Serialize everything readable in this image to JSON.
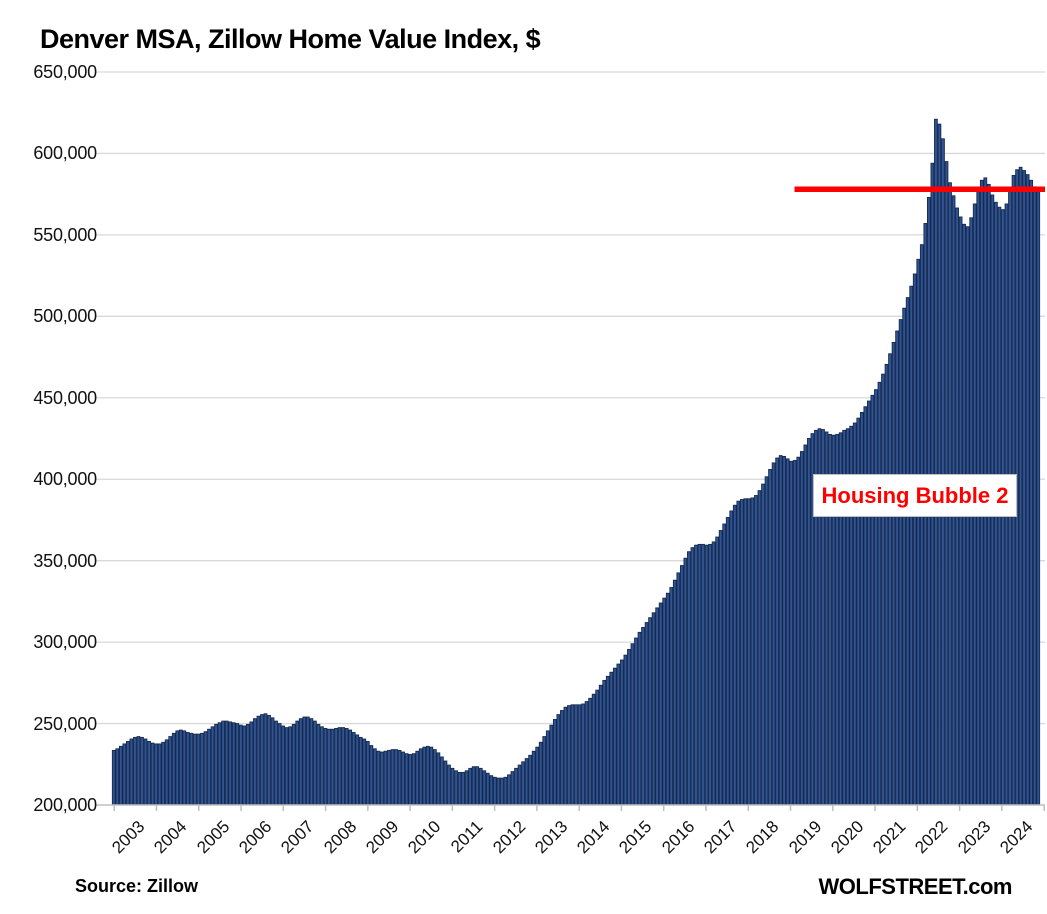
{
  "title": "Denver MSA, Zillow Home Value Index, $",
  "source_note": "Source: Zillow",
  "branding": "WOLFSTREET.com",
  "annotation": {
    "label": "Housing Bubble 2"
  },
  "colors": {
    "bar_fill": "#2F5496",
    "bar_stroke": "#17294A",
    "gridline": "#D9D9D9",
    "axis": "#BFBFBF",
    "reference_line": "#FF0000",
    "annotation_text": "#FF0000",
    "text": "#000000"
  },
  "chart_data": {
    "type": "bar",
    "title": "Denver MSA, Zillow Home Value Index, $",
    "xlabel": "",
    "ylabel": "",
    "ylim": [
      200000,
      650000
    ],
    "ytick_step": 50000,
    "ytick_labels": [
      "200,000",
      "250,000",
      "300,000",
      "350,000",
      "400,000",
      "450,000",
      "500,000",
      "550,000",
      "600,000",
      "650,000"
    ],
    "grid": true,
    "legend": false,
    "x_years": [
      2003,
      2004,
      2005,
      2006,
      2007,
      2008,
      2009,
      2010,
      2011,
      2012,
      2013,
      2014,
      2015,
      2016,
      2017,
      2018,
      2019,
      2020,
      2021,
      2022,
      2023,
      2024
    ],
    "series_name": "Zillow Home Value Index ($, monthly)",
    "start_month": "2003-01",
    "end_month": "2024-11",
    "monthly_values": [
      233500,
      234500,
      236000,
      237500,
      239000,
      240500,
      241500,
      242000,
      241500,
      240500,
      239000,
      238000,
      237500,
      237500,
      238500,
      240000,
      242000,
      244000,
      245500,
      246000,
      245500,
      244500,
      244000,
      243500,
      243500,
      244000,
      245000,
      246500,
      248000,
      249500,
      250500,
      251500,
      251500,
      251000,
      250500,
      250000,
      249000,
      248500,
      249500,
      251000,
      253000,
      254500,
      255500,
      256000,
      255000,
      253500,
      251500,
      250000,
      248500,
      247500,
      248000,
      249500,
      251500,
      253000,
      254000,
      254000,
      253000,
      251500,
      249500,
      248000,
      247000,
      246500,
      246500,
      247000,
      247500,
      247500,
      247000,
      246000,
      244500,
      243000,
      241500,
      240500,
      239000,
      236500,
      234500,
      233000,
      232500,
      233000,
      233500,
      234000,
      234000,
      233500,
      232500,
      231500,
      231000,
      231500,
      233000,
      234500,
      235500,
      236000,
      235500,
      234000,
      232000,
      229500,
      227000,
      224500,
      222500,
      221000,
      220000,
      220000,
      221000,
      222500,
      223500,
      223500,
      222500,
      221000,
      219500,
      218000,
      217000,
      216500,
      216500,
      217000,
      218500,
      220500,
      222500,
      224500,
      226500,
      228500,
      230500,
      233000,
      235500,
      238500,
      242000,
      245500,
      249000,
      252500,
      255500,
      258000,
      260000,
      261000,
      261500,
      261500,
      261500,
      262000,
      263500,
      265500,
      268000,
      270500,
      273500,
      276500,
      279000,
      281500,
      284000,
      286500,
      289000,
      292000,
      295500,
      299000,
      302500,
      306000,
      309000,
      312000,
      315000,
      318000,
      321000,
      324000,
      327000,
      330000,
      333500,
      338000,
      342500,
      347000,
      351500,
      355500,
      358000,
      359500,
      360000,
      360000,
      359500,
      360000,
      361500,
      364500,
      368500,
      372500,
      376500,
      380500,
      384000,
      386500,
      387500,
      388000,
      388000,
      388500,
      390000,
      393000,
      397000,
      401500,
      406000,
      410000,
      413000,
      414500,
      414000,
      412500,
      411000,
      411500,
      413500,
      417000,
      421000,
      425000,
      428000,
      430000,
      431000,
      430500,
      429000,
      427500,
      427000,
      427500,
      428500,
      430000,
      431000,
      432500,
      434500,
      437500,
      441000,
      444500,
      448000,
      451500,
      455000,
      459500,
      464500,
      470500,
      477000,
      484000,
      491000,
      498000,
      505000,
      511500,
      518500,
      526000,
      535000,
      544000,
      557000,
      573000,
      594000,
      621000,
      618000,
      609000,
      595000,
      582000,
      574000,
      566500,
      561000,
      556500,
      555000,
      560500,
      569000,
      577000,
      583500,
      585000,
      581000,
      574500,
      570000,
      567000,
      565500,
      569000,
      577000,
      586500,
      590000,
      591500,
      589500,
      587000,
      583500,
      579500,
      578000
    ],
    "reference_line": {
      "value": 578000,
      "starts_at_year": 2019,
      "color": "#FF0000"
    },
    "peak": {
      "month": "2022-06",
      "value": 621000
    },
    "annotation_text": "Housing Bubble 2"
  }
}
